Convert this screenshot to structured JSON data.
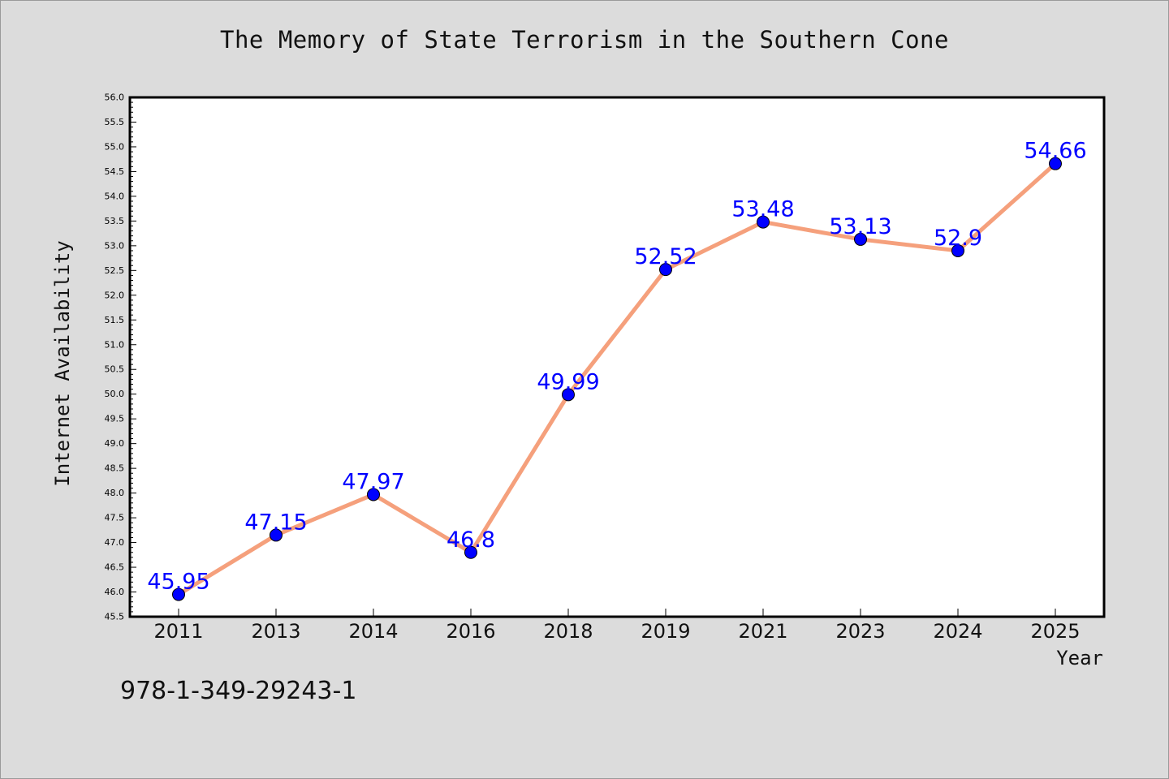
{
  "chart_data": {
    "type": "line",
    "title": "The Memory of State Terrorism in the Southern Cone",
    "xlabel": "Year",
    "ylabel": "Internet Availability",
    "categories": [
      "2011",
      "2013",
      "2014",
      "2016",
      "2018",
      "2019",
      "2021",
      "2023",
      "2024",
      "2025"
    ],
    "values": [
      45.95,
      47.15,
      47.97,
      46.8,
      49.99,
      52.52,
      53.48,
      53.13,
      52.9,
      54.66
    ],
    "data_labels": [
      "45.95",
      "47.15",
      "47.97",
      "46.8",
      "49.99",
      "52.52",
      "53.48",
      "53.13",
      "52.9",
      "54.66"
    ],
    "ylim": [
      45.5,
      56.0
    ],
    "y_ticks": [
      "45.5",
      "46.0",
      "46.5",
      "47.0",
      "47.5",
      "48.0",
      "48.5",
      "49.0",
      "49.5",
      "50.0",
      "50.5",
      "51.0",
      "51.5",
      "52.0",
      "52.5",
      "53.0",
      "53.5",
      "54.0",
      "54.5",
      "55.0",
      "55.5",
      "56.0"
    ],
    "grid": false,
    "legend": "none",
    "colors": {
      "line": "#f5a07c",
      "marker": "#0000ff",
      "label": "#0000ff",
      "background": "#dcdcdc",
      "plot_background": "#ffffff"
    }
  },
  "footer": {
    "isbn": "978-1-349-29243-1"
  }
}
